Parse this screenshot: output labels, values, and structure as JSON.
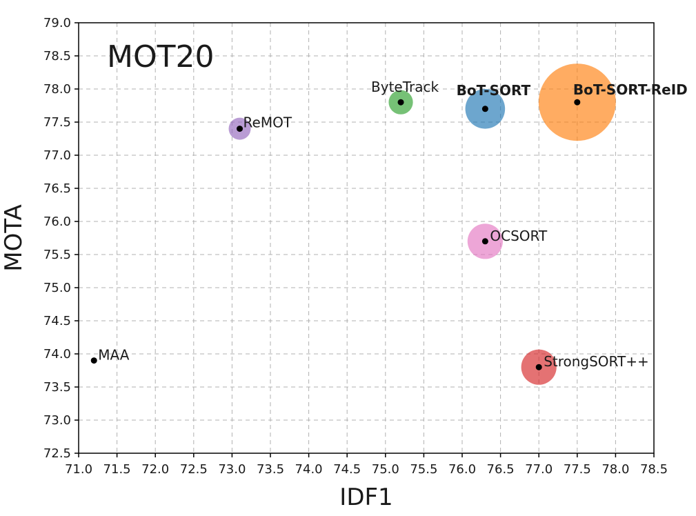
{
  "chart_data": {
    "type": "scatter",
    "title": "MOT20",
    "xlabel": "IDF1",
    "ylabel": "MOTA",
    "xlim": [
      71.0,
      78.5
    ],
    "ylim": [
      72.5,
      79.0
    ],
    "grid": true,
    "x_ticks": [
      "71.0",
      "71.5",
      "72.0",
      "72.5",
      "73.0",
      "73.5",
      "74.0",
      "74.5",
      "75.0",
      "75.5",
      "76.0",
      "76.5",
      "77.0",
      "77.5",
      "78.0",
      "78.5"
    ],
    "y_ticks": [
      "72.5",
      "73.0",
      "73.5",
      "74.0",
      "74.5",
      "75.0",
      "75.5",
      "76.0",
      "76.5",
      "77.0",
      "77.5",
      "78.0",
      "78.5",
      "79.0"
    ],
    "points": [
      {
        "label": "MAA",
        "x": 71.2,
        "y": 73.9,
        "bubble": 0,
        "color": "#000000",
        "bold": false
      },
      {
        "label": "ReMOT",
        "x": 73.1,
        "y": 77.4,
        "bubble": 1.0,
        "color": "#9467bd",
        "bold": false
      },
      {
        "label": "ByteTrack",
        "x": 75.2,
        "y": 77.8,
        "bubble": 1.1,
        "color": "#2ca02c",
        "bold": false
      },
      {
        "label": "BoT-SORT",
        "x": 76.3,
        "y": 77.7,
        "bubble": 1.8,
        "color": "#1f77b4",
        "bold": true
      },
      {
        "label": "BoT-SORT-ReID",
        "x": 77.5,
        "y": 77.8,
        "bubble": 3.5,
        "color": "#ff7f0e",
        "bold": true
      },
      {
        "label": "OCSORT",
        "x": 76.3,
        "y": 75.7,
        "bubble": 1.6,
        "color": "#e377c2",
        "bold": false
      },
      {
        "label": "StrongSORT++",
        "x": 77.0,
        "y": 73.8,
        "bubble": 1.6,
        "color": "#d62728",
        "bold": false
      }
    ]
  }
}
